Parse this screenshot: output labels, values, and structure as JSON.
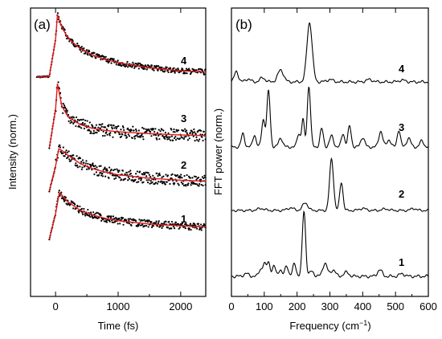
{
  "chart_data": [
    {
      "type": "scatter",
      "panel_label": "(a)",
      "xlabel": "Time (fs)",
      "ylabel": "Intensity (norm.)",
      "xlim": [
        -400,
        2400
      ],
      "x_ticks": [
        0,
        1000,
        2000
      ],
      "x_tick_labels": [
        "0",
        "1000",
        "2000"
      ],
      "y_ticks_shown": false,
      "legend": "none",
      "grid": false,
      "series": [
        {
          "name": "4",
          "peak_time_fs": 30,
          "decay_points": {
            "x": [
              -300,
              -100,
              0,
              30,
              100,
              200,
              400,
              600,
              800,
              1000,
              1500,
              2000,
              2400
            ],
            "y": [
              0.0,
              0.01,
              0.6,
              1.0,
              0.8,
              0.62,
              0.45,
              0.35,
              0.28,
              0.23,
              0.15,
              0.1,
              0.08
            ]
          },
          "fit_color": "#e01818"
        },
        {
          "name": "3",
          "peak_time_fs": 30,
          "decay_points": {
            "x": [
              -100,
              0,
              30,
              100,
              200,
              400,
              600,
              800,
              1000,
              1500,
              2000,
              2400
            ],
            "y": [
              0.0,
              0.6,
              1.0,
              0.65,
              0.48,
              0.36,
              0.3,
              0.27,
              0.25,
              0.22,
              0.2,
              0.19
            ]
          },
          "fit_color": "#e01818"
        },
        {
          "name": "2",
          "peak_time_fs": 50,
          "decay_points": {
            "x": [
              -100,
              0,
              50,
              100,
              200,
              400,
              600,
              800,
              1000,
              1500,
              2000,
              2400
            ],
            "y": [
              0.0,
              0.5,
              0.85,
              0.82,
              0.72,
              0.55,
              0.45,
              0.38,
              0.33,
              0.26,
              0.22,
              0.2
            ]
          },
          "fit_color": "#e01818"
        },
        {
          "name": "1",
          "peak_time_fs": 60,
          "decay_points": {
            "x": [
              -100,
              0,
              60,
              100,
              200,
              400,
              600,
              800,
              1000,
              1500,
              2000,
              2400
            ],
            "y": [
              0.0,
              0.55,
              1.0,
              0.95,
              0.8,
              0.62,
              0.52,
              0.45,
              0.4,
              0.33,
              0.29,
              0.27
            ]
          },
          "fit_color": "#e01818"
        }
      ]
    },
    {
      "type": "line",
      "panel_label": "(b)",
      "xlabel": "Frequency (cm",
      "xlabel_sup": "−1",
      "xlabel_close": ")",
      "ylabel": "FFT power (norm.)",
      "xlim": [
        0,
        600
      ],
      "x_ticks": [
        0,
        100,
        200,
        300,
        400,
        500,
        600
      ],
      "x_tick_labels": [
        "0",
        "100",
        "200",
        "300",
        "400",
        "500",
        "600"
      ],
      "y_ticks_shown": false,
      "legend": "none",
      "grid": false,
      "series": [
        {
          "name": "4",
          "peaks": [
            {
              "f": 15,
              "a": 0.18,
              "w": 6
            },
            {
              "f": 50,
              "a": 0.05,
              "w": 8
            },
            {
              "f": 95,
              "a": 0.07,
              "w": 8
            },
            {
              "f": 150,
              "a": 0.2,
              "w": 9
            },
            {
              "f": 238,
              "a": 1.0,
              "w": 8
            },
            {
              "f": 300,
              "a": 0.04,
              "w": 10
            },
            {
              "f": 420,
              "a": 0.04,
              "w": 10
            },
            {
              "f": 520,
              "a": 0.03,
              "w": 10
            }
          ]
        },
        {
          "name": "3",
          "peaks": [
            {
              "f": 35,
              "a": 0.22,
              "w": 5
            },
            {
              "f": 70,
              "a": 0.2,
              "w": 5
            },
            {
              "f": 97,
              "a": 0.45,
              "w": 5
            },
            {
              "f": 113,
              "a": 0.92,
              "w": 5
            },
            {
              "f": 150,
              "a": 0.15,
              "w": 6
            },
            {
              "f": 205,
              "a": 0.22,
              "w": 5
            },
            {
              "f": 218,
              "a": 0.45,
              "w": 4
            },
            {
              "f": 236,
              "a": 1.0,
              "w": 5
            },
            {
              "f": 275,
              "a": 0.3,
              "w": 5
            },
            {
              "f": 305,
              "a": 0.18,
              "w": 6
            },
            {
              "f": 340,
              "a": 0.22,
              "w": 5
            },
            {
              "f": 360,
              "a": 0.34,
              "w": 5
            },
            {
              "f": 400,
              "a": 0.16,
              "w": 6
            },
            {
              "f": 455,
              "a": 0.26,
              "w": 6
            },
            {
              "f": 480,
              "a": 0.12,
              "w": 6
            },
            {
              "f": 510,
              "a": 0.28,
              "w": 5
            },
            {
              "f": 540,
              "a": 0.15,
              "w": 6
            },
            {
              "f": 580,
              "a": 0.1,
              "w": 6
            }
          ]
        },
        {
          "name": "2",
          "peaks": [
            {
              "f": 90,
              "a": 0.04,
              "w": 10
            },
            {
              "f": 180,
              "a": 0.05,
              "w": 10
            },
            {
              "f": 225,
              "a": 0.15,
              "w": 8
            },
            {
              "f": 305,
              "a": 1.0,
              "w": 6
            },
            {
              "f": 335,
              "a": 0.55,
              "w": 5
            },
            {
              "f": 400,
              "a": 0.04,
              "w": 10
            },
            {
              "f": 470,
              "a": 0.03,
              "w": 10
            },
            {
              "f": 555,
              "a": 0.04,
              "w": 8
            }
          ]
        },
        {
          "name": "1",
          "peaks": [
            {
              "f": 45,
              "a": 0.04,
              "w": 8
            },
            {
              "f": 88,
              "a": 0.1,
              "w": 5
            },
            {
              "f": 100,
              "a": 0.18,
              "w": 5
            },
            {
              "f": 113,
              "a": 0.22,
              "w": 5
            },
            {
              "f": 130,
              "a": 0.15,
              "w": 5
            },
            {
              "f": 148,
              "a": 0.1,
              "w": 5
            },
            {
              "f": 168,
              "a": 0.17,
              "w": 5
            },
            {
              "f": 192,
              "a": 0.2,
              "w": 5
            },
            {
              "f": 221,
              "a": 1.0,
              "w": 5
            },
            {
              "f": 245,
              "a": 0.08,
              "w": 6
            },
            {
              "f": 285,
              "a": 0.2,
              "w": 7
            },
            {
              "f": 310,
              "a": 0.1,
              "w": 7
            },
            {
              "f": 350,
              "a": 0.06,
              "w": 8
            },
            {
              "f": 452,
              "a": 0.1,
              "w": 7
            },
            {
              "f": 520,
              "a": 0.04,
              "w": 8
            }
          ]
        }
      ]
    }
  ]
}
